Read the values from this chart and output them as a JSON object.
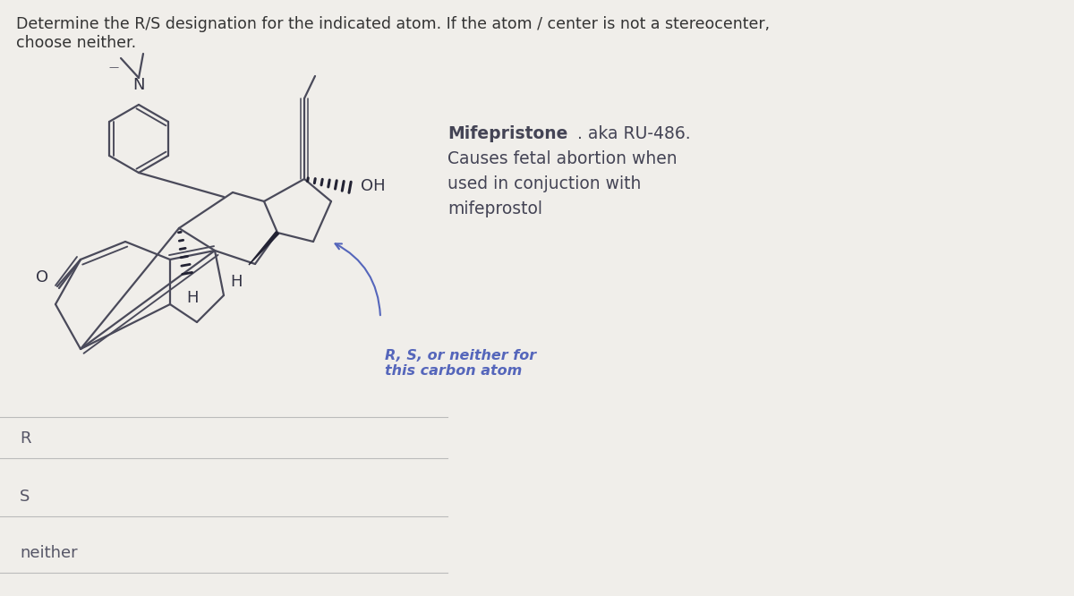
{
  "title_text": "Determine the R/S designation for the indicated atom. If the atom / center is not a stereocenter,\nchoose neither.",
  "title_fontsize": 12.5,
  "title_color": "#333333",
  "bg_color": "#f0eeea",
  "mifepristone_bold": "Mifepristone",
  "mifepristone_rest": ". aka RU-486.",
  "mifepristone_desc": "Causes fetal abortion when\nused in conjuction with\nmifeprostol",
  "mifepristone_text_color": "#444455",
  "annotation_text": "R, S, or neither for\nthis carbon atom",
  "annotation_color": "#5566bb",
  "choices": [
    "R",
    "S",
    "neither"
  ],
  "choices_fontsize": 13,
  "choices_color": "#555566",
  "separator_color": "#bbbbbb",
  "mol_color": "#4a4a5a",
  "mol_lw": 1.6,
  "wedge_color": "#222233",
  "label_color": "#333344"
}
